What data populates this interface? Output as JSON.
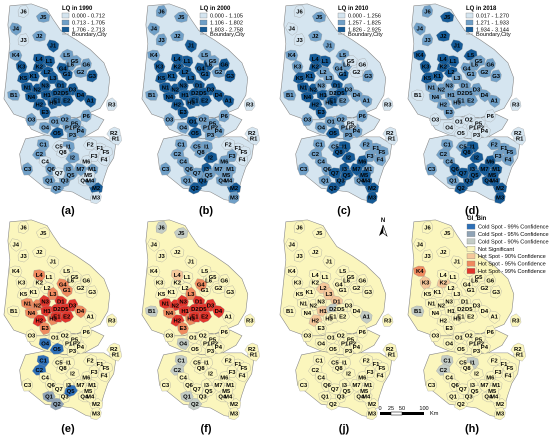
{
  "panels_top": [
    {
      "id": "a",
      "label": "(a)",
      "legend_title": "LQ in 1990",
      "classes": [
        "0.000 - 0.712",
        "0.713 - 1.705",
        "1.706 - 2.713"
      ],
      "boundary": "Boundary,City"
    },
    {
      "id": "b",
      "label": "(b)",
      "legend_title": "LQ in 2000",
      "classes": [
        "0.000 - 1.105",
        "1.106 - 1.802",
        "1.803 - 2.758"
      ],
      "boundary": "Boundary,City"
    },
    {
      "id": "c",
      "label": "(c)",
      "legend_title": "LQ in 2010",
      "classes": [
        "0.000 - 1.256",
        "1.257 - 1.825",
        "1.826 - 2.925"
      ],
      "boundary": "Boundary,City"
    },
    {
      "id": "d",
      "label": "(d)",
      "legend_title": "LQ in 2018",
      "classes": [
        "0.017 - 1.270",
        "1.271 - 1.933",
        "1.934 - 3.144"
      ],
      "boundary": "Boundary,City"
    }
  ],
  "panels_bottom": [
    {
      "id": "e",
      "label": "(e)"
    },
    {
      "id": "f",
      "label": "(f)"
    },
    {
      "id": "j",
      "label": "(j)"
    },
    {
      "id": "h",
      "label": "(h)"
    }
  ],
  "gi_legend": {
    "title": "GI_Bin",
    "items": [
      {
        "label": "Cold Spot - 99% Confidence",
        "color": "#2d6fb6"
      },
      {
        "label": "Cold Spot - 95% Confidence",
        "color": "#8fa3b6"
      },
      {
        "label": "Cold Spot - 90% Confidence",
        "color": "#c3ccc5"
      },
      {
        "label": "Not Significant",
        "color": "#fbf6bd"
      },
      {
        "label": "Hot Spot - 90% Confidence",
        "color": "#f5c79a"
      },
      {
        "label": "Hot Spot - 95% Confidence",
        "color": "#ef8a5e"
      },
      {
        "label": "Hot Spot - 99% Confidence",
        "color": "#e2352b"
      }
    ]
  },
  "scale_bar": {
    "ticks": [
      "0",
      "25",
      "50",
      "100"
    ],
    "unit": "Km"
  },
  "north_arrow": "N",
  "colors": {
    "lq_class1": "#d5e5f0",
    "lq_class2": "#6f9fc7",
    "lq_class3": "#155a96",
    "not_significant": "#fbf6bd",
    "boundary": "#8a8a8a"
  },
  "region_labels": [
    "J6",
    "J5",
    "J4",
    "J3",
    "J2",
    "J1",
    "K4",
    "K3",
    "K2",
    "K1",
    "K5",
    "L1",
    "L2",
    "L3",
    "L4",
    "L5",
    "L6",
    "N1",
    "N2",
    "N3",
    "N4",
    "G1",
    "G2",
    "G3",
    "G4",
    "G5",
    "G6",
    "H1",
    "H2",
    "H3",
    "B1",
    "D1",
    "D2",
    "D3",
    "D4",
    "D5",
    "E1",
    "E2",
    "E3",
    "A1",
    "O1",
    "O2",
    "O3",
    "O4",
    "O5",
    "P1",
    "P2",
    "P3",
    "P4",
    "P5",
    "P6",
    "R1",
    "R2",
    "R3",
    "C1",
    "C2",
    "C3",
    "C4",
    "C5",
    "I1",
    "I2",
    "I3",
    "F1",
    "F2",
    "F3",
    "F4",
    "F5",
    "Q1",
    "Q2",
    "Q3",
    "Q4",
    "Q5",
    "Q6",
    "Q7",
    "Q8",
    "M1",
    "M2",
    "M3",
    "M4",
    "M5",
    "M6",
    "M7"
  ],
  "map_values": {
    "a": [
      "J6:1",
      "J5:2",
      "J4:2",
      "J3:1",
      "J2:2",
      "J1:3",
      "K4:2",
      "K3:3",
      "K2:3",
      "K1:3",
      "K5:3",
      "L1:3",
      "L2:3",
      "L3:3",
      "L4:3",
      "L5:2",
      "L6:2",
      "N1:3",
      "N2:3",
      "N3:3",
      "N4:3",
      "G1:3",
      "G2:2",
      "G3:3",
      "G4:3",
      "G5:2",
      "G6:2",
      "H1:3",
      "H2:3",
      "H3:3",
      "B1:2",
      "D1:3",
      "D2:3",
      "D3:3",
      "D4:3",
      "D5:3",
      "E1:3",
      "E2:3",
      "E3:3",
      "A1:3",
      "O1:2",
      "O2:2",
      "O3:2",
      "O4:2",
      "O5:3",
      "P1:2",
      "P2:1",
      "P3:2",
      "P4:2",
      "P5:2",
      "P6:2",
      "R1:1",
      "R2:1",
      "R3:1",
      "C1:2",
      "C2:2",
      "C3:2",
      "C4:1",
      "C5:1",
      "I1:2",
      "I2:2",
      "I3:2",
      "F1:1",
      "F2:1",
      "F3:1",
      "F4:1",
      "F5:1",
      "Q1:2",
      "Q2:2",
      "Q3:2",
      "Q4:1",
      "Q5:2",
      "Q6:2",
      "Q7:1",
      "Q8:1",
      "M1:2",
      "M2:3",
      "M3:1",
      "M4:2",
      "M5:1",
      "M6:1",
      "M7:2"
    ],
    "b": [
      "J6:2",
      "J5:2",
      "J4:2",
      "J3:2",
      "J2:2",
      "J1:3",
      "K4:2",
      "K3:3",
      "K2:3",
      "K1:3",
      "K5:3",
      "L1:3",
      "L2:3",
      "L3:3",
      "L4:3",
      "L5:2",
      "L6:3",
      "N1:3",
      "N2:3",
      "N3:3",
      "N4:3",
      "G1:3",
      "G2:2",
      "G3:3",
      "G4:3",
      "G5:2",
      "G6:3",
      "H1:3",
      "H2:3",
      "H3:3",
      "B1:2",
      "D1:3",
      "D2:3",
      "D3:3",
      "D4:3",
      "D5:3",
      "E1:3",
      "E2:3",
      "E3:3",
      "A1:3",
      "O1:3",
      "O2:2",
      "O3:2",
      "O4:2",
      "O5:3",
      "P1:2",
      "P2:2",
      "P3:2",
      "P4:2",
      "P5:2",
      "P6:2",
      "R1:1",
      "R2:1",
      "R3:1",
      "C1:2",
      "C2:2",
      "C3:2",
      "C4:2",
      "C5:2",
      "I1:2",
      "I2:3",
      "I3:3",
      "F1:1",
      "F2:1",
      "F3:2",
      "F4:1",
      "F5:1",
      "Q1:2",
      "Q2:3",
      "Q3:3",
      "Q4:2",
      "Q5:2",
      "Q6:2",
      "Q7:2",
      "Q8:2",
      "M1:2",
      "M2:3",
      "M3:2",
      "M4:2",
      "M5:2",
      "M6:2",
      "M7:2"
    ],
    "c": [
      "J6:1",
      "J5:2",
      "J4:1",
      "J3:1",
      "J2:2",
      "J1:2",
      "K4:2",
      "K3:2",
      "K2:3",
      "K1:3",
      "K5:3",
      "L1:3",
      "L2:2",
      "L3:2",
      "L4:3",
      "L5:2",
      "L6:2",
      "N1:3",
      "N2:3",
      "N3:2",
      "N4:3",
      "G1:3",
      "G2:1",
      "G3:2",
      "G4:2",
      "G5:1",
      "G6:1",
      "H1:3",
      "H2:3",
      "H3:2",
      "B1:2",
      "D1:3",
      "D2:2",
      "D3:2",
      "D4:2",
      "D5:3",
      "E1:3",
      "E2:2",
      "E3:3",
      "A1:2",
      "O1:2",
      "O2:2",
      "O3:2",
      "O4:2",
      "O5:3",
      "P1:2",
      "P2:2",
      "P3:2",
      "P4:2",
      "P5:1",
      "P6:2",
      "R1:1",
      "R2:1",
      "R3:1",
      "C1:2",
      "C2:2",
      "C3:2",
      "C4:2",
      "C5:2",
      "I1:3",
      "I2:3",
      "I3:3",
      "F1:2",
      "F2:2",
      "F3:2",
      "F4:2",
      "F5:2",
      "Q1:2",
      "Q2:3",
      "Q3:3",
      "Q4:2",
      "Q5:3",
      "Q6:2",
      "Q7:3",
      "Q8:3",
      "M1:2",
      "M2:3",
      "M3:3",
      "M4:3",
      "M5:3",
      "M6:3",
      "M7:3"
    ],
    "d": [
      "J6:2",
      "J5:3",
      "J4:2",
      "J3:2",
      "J2:3",
      "J1:3",
      "K4:3",
      "K3:3",
      "K2:3",
      "K1:3",
      "K5:3",
      "L1:3",
      "L2:3",
      "L3:2",
      "L4:3",
      "L5:3",
      "L6:2",
      "N1:2",
      "N2:2",
      "N3:2",
      "N4:2",
      "G1:2",
      "G2:2",
      "G3:2",
      "G4:2",
      "G5:2",
      "G6:2",
      "H1:2",
      "H2:2",
      "H3:2",
      "B1:1",
      "D1:2",
      "D2:2",
      "D3:2",
      "D4:2",
      "D5:2",
      "E1:2",
      "E2:2",
      "E3:2",
      "A1:2",
      "O1:1",
      "O2:1",
      "O3:1",
      "O4:1",
      "O5:1",
      "P1:1",
      "P2:1",
      "P3:1",
      "P4:1",
      "P5:1",
      "P6:1",
      "R1:1",
      "R2:1",
      "R3:1",
      "C1:2",
      "C2:2",
      "C3:2",
      "C4:2",
      "C5:2",
      "I1:3",
      "I2:3",
      "I3:3",
      "F1:2",
      "F2:2",
      "F3:2",
      "F4:2",
      "F5:2",
      "Q1:2",
      "Q2:3",
      "Q3:3",
      "Q4:3",
      "Q5:3",
      "Q6:3",
      "Q7:3",
      "Q8:3",
      "M1:3",
      "M2:3",
      "M3:3",
      "M4:3",
      "M5:3",
      "M6:3",
      "M7:3"
    ],
    "e": [
      "N1:6",
      "N2:6",
      "N3:7",
      "N4:6",
      "L3:6",
      "L4:6",
      "D1:7",
      "D2:7",
      "D3:7",
      "D4:6",
      "D5:7",
      "E1:7",
      "E2:7",
      "E3:6",
      "H1:7",
      "H2:7",
      "H3:6",
      "G4:6",
      "G1:6",
      "O4:1",
      "O5:1",
      "C1:1",
      "C2:1",
      "Q1:2",
      "Q2:2",
      "Q5:1"
    ],
    "f": [
      "J6:3",
      "J5:3",
      "N1:7",
      "N2:7",
      "N3:7",
      "N4:6",
      "D1:7",
      "D2:7",
      "D3:7",
      "D4:7",
      "D5:7",
      "E1:7",
      "E2:7",
      "E3:6",
      "H1:7",
      "H2:7",
      "H3:6",
      "G4:6",
      "L3:6",
      "L4:5",
      "B1:3",
      "O4:3",
      "C1:3",
      "C2:3",
      "Q1:3",
      "Q2:3"
    ],
    "j": [
      "H1:5",
      "H2:5",
      "L3:5",
      "L2:5",
      "D1:5",
      "A1:3",
      "D2:3"
    ],
    "h": [
      "K3:5",
      "K4:6",
      "K2:5",
      "B1:3",
      "C1:3",
      "C2:3",
      "I1:3"
    ]
  }
}
